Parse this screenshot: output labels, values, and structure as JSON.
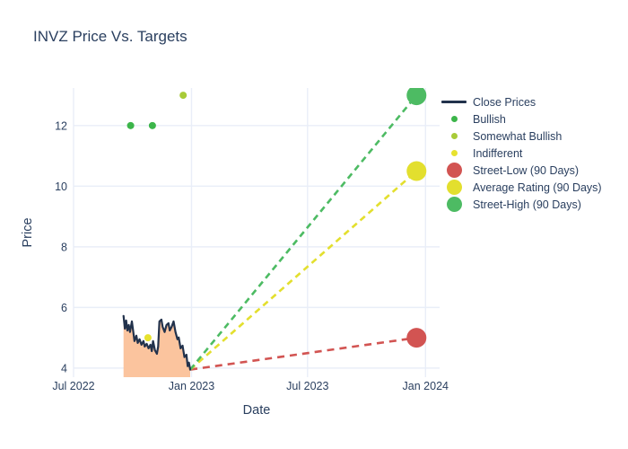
{
  "title": "INVZ Price Vs. Targets",
  "colors": {
    "text": "#2a3f5f",
    "grid": "#e9eef8",
    "close_line": "#22324c",
    "area_fill": "#fbc49e",
    "bullish": "#3cb54a",
    "somewhat_bullish": "#a8cb38",
    "indifferent": "#e7e22f",
    "street_low": "#d25452",
    "average": "#e3df2e",
    "street_high": "#4dbb63"
  },
  "legend": {
    "items": [
      {
        "label": "Close Prices",
        "marker": "line",
        "color_key": "close_line"
      },
      {
        "label": "Bullish",
        "marker": "dot-small",
        "color_key": "bullish"
      },
      {
        "label": "Somewhat Bullish",
        "marker": "dot-small",
        "color_key": "somewhat_bullish"
      },
      {
        "label": "Indifferent",
        "marker": "dot-small",
        "color_key": "indifferent"
      },
      {
        "label": "Street-Low (90 Days)",
        "marker": "dot-large",
        "color_key": "street_low"
      },
      {
        "label": "Average Rating (90 Days)",
        "marker": "dot-large",
        "color_key": "average"
      },
      {
        "label": "Street-High (90 Days)",
        "marker": "dot-large",
        "color_key": "street_high"
      }
    ]
  },
  "chart_data": {
    "type": "line",
    "title": "INVZ Price Vs. Targets",
    "xlabel": "Date",
    "ylabel": "Price",
    "grid": true,
    "legend_position": "right",
    "x_axis": {
      "epoch": "2022-07-01",
      "range_days": [
        0,
        571
      ],
      "ticks": [
        {
          "label": "Jul 2022",
          "days": 0
        },
        {
          "label": "Jan 2023",
          "days": 184
        },
        {
          "label": "Jul 2023",
          "days": 365
        },
        {
          "label": "Jan 2024",
          "days": 549
        }
      ]
    },
    "y_axis": {
      "range": [
        3.7,
        13.24
      ],
      "ticks": [
        4,
        6,
        8,
        10,
        12
      ]
    },
    "close_prices": {
      "name": "Close Prices",
      "x_days": [
        78,
        80,
        82,
        84,
        86,
        88,
        91,
        93,
        95,
        98,
        100,
        103,
        106,
        109,
        111,
        114,
        117,
        120,
        122,
        124,
        127,
        130,
        132,
        134,
        137,
        139,
        142,
        145,
        148,
        150,
        153,
        156,
        159,
        162,
        164,
        167,
        170,
        173,
        176,
        178,
        180,
        182
      ],
      "y": [
        5.72,
        5.3,
        5.57,
        5.24,
        5.42,
        5.19,
        5.54,
        5.21,
        4.89,
        5.07,
        4.83,
        4.95,
        4.77,
        4.89,
        4.71,
        4.8,
        4.65,
        4.77,
        4.56,
        4.89,
        4.59,
        4.47,
        4.71,
        5.54,
        5.6,
        5.36,
        5.19,
        5.42,
        5.48,
        5.24,
        5.36,
        5.54,
        5.19,
        4.95,
        5.01,
        4.65,
        4.74,
        4.36,
        4.44,
        4.06,
        4.18,
        3.95
      ]
    },
    "ratings": [
      {
        "name": "Bullish",
        "color_key": "bullish",
        "points": [
          {
            "days": 89,
            "price": 12.0
          },
          {
            "days": 123,
            "price": 12.0
          }
        ]
      },
      {
        "name": "Somewhat Bullish",
        "color_key": "somewhat_bullish",
        "points": [
          {
            "days": 171,
            "price": 13.0
          }
        ]
      },
      {
        "name": "Indifferent",
        "color_key": "indifferent",
        "points": [
          {
            "days": 116,
            "price": 5.0
          }
        ]
      }
    ],
    "trend_origin": {
      "days": 182,
      "price": 3.95
    },
    "targets": [
      {
        "name": "Street-Low (90 Days)",
        "color_key": "street_low",
        "days": 535,
        "price": 5.0,
        "dash": "8,6"
      },
      {
        "name": "Average Rating (90 Days)",
        "color_key": "average",
        "days": 535,
        "price": 10.5,
        "dash": "7,5"
      },
      {
        "name": "Street-High (90 Days)",
        "color_key": "street_high",
        "days": 535,
        "price": 13.0,
        "dash": "7,5"
      }
    ]
  }
}
